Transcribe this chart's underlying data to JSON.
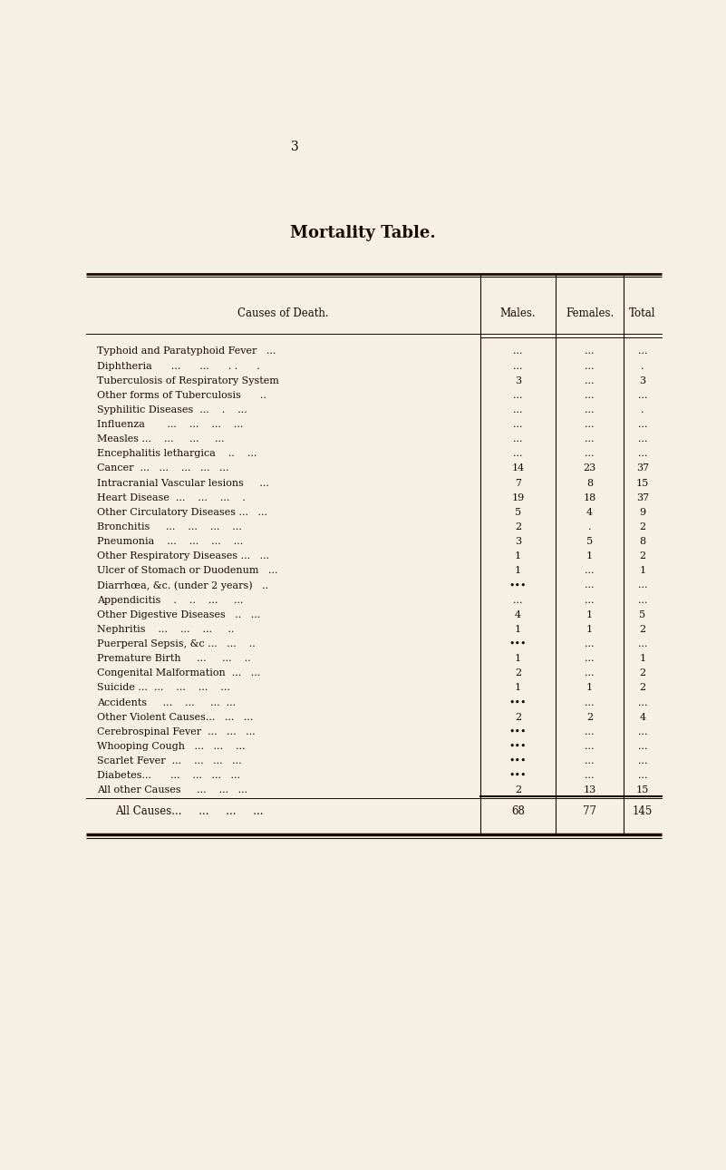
{
  "page_number": "3",
  "title": "Mortality Table.",
  "background_color": "#f5f0e1",
  "text_color": "#1a0a00",
  "header": [
    "Causes of Death.",
    "Males.",
    "Females.",
    "Total"
  ],
  "rows": [
    [
      "Typhoid and Paratyphoid Fever   ...",
      "...",
      "...",
      "..."
    ],
    [
      "Diphtheria      ...      ...      . .      .",
      "...",
      "...",
      "."
    ],
    [
      "Tuberculosis of Respiratory System",
      "3",
      "...",
      "3"
    ],
    [
      "Other forms of Tuberculosis      ..",
      "...",
      "...",
      "..."
    ],
    [
      "Syphilitic Diseases  ...    .    ...",
      "...",
      "...",
      "."
    ],
    [
      "Influenza       ...    ...    ...    ...",
      "...",
      "...",
      "..."
    ],
    [
      "Measles ...    ...     ...     ...",
      "...",
      "...",
      "..."
    ],
    [
      "Encephalitis lethargica    ..    ...",
      "...",
      "...",
      "..."
    ],
    [
      "Cancer  ...   ...    ...   ...   ...",
      "14",
      "23",
      "37"
    ],
    [
      "Intracranial Vascular lesions     ...",
      "7",
      "8",
      "15"
    ],
    [
      "Heart Disease  ...    ...    ...    .",
      "19",
      "18",
      "37"
    ],
    [
      "Other Circulatory Diseases ...   ...",
      "5",
      "4",
      "9"
    ],
    [
      "Bronchitis     ...    ...    ...    ...",
      "2",
      ".",
      "2"
    ],
    [
      "Pneumonia    ...    ...    ...    ...",
      "3",
      "5",
      "8"
    ],
    [
      "Other Respiratory Diseases ...   ...",
      "1",
      "1",
      "2"
    ],
    [
      "Ulcer of Stomach or Duodenum   ...",
      "1",
      "...",
      "1"
    ],
    [
      "Diarrhœa, &c. (under 2 years)   ..",
      "•••",
      "...",
      "..."
    ],
    [
      "Appendicitis    .    ..    ...     ...",
      "...",
      "...",
      "..."
    ],
    [
      "Other Digestive Diseases   ..   ...",
      "4",
      "1",
      "5"
    ],
    [
      "Nephritis    ...    ...    ...     ..",
      "1",
      "1",
      "2"
    ],
    [
      "Puerperal Sepsis, &c ...   ...    ..",
      "•••",
      "...",
      "..."
    ],
    [
      "Premature Birth     ...     ...    ..",
      "1",
      "...",
      "1"
    ],
    [
      "Congenital Malformation  ...   ...",
      "2",
      "...",
      "2"
    ],
    [
      "Suicide ...  ...    ...    ...    ...",
      "1",
      "1",
      "2"
    ],
    [
      "Accidents     ...    ...     ...  ...",
      "•••",
      "...",
      "..."
    ],
    [
      "Other Violent Causes...   ...   ...",
      "2",
      "2",
      "4"
    ],
    [
      "Cerebrospinal Fever  ...   ...   ...",
      "•••",
      "...",
      "..."
    ],
    [
      "Whooping Cough   ...   ...    ...",
      "•••",
      "...",
      "..."
    ],
    [
      "Scarlet Fever  ...    ...   ...   ...",
      "•••",
      "...",
      "..."
    ],
    [
      "Diabetes...      ...    ...   ...   ...",
      "•••",
      "...",
      "..."
    ],
    [
      "All other Causes     ...    ...   ...",
      "2",
      "13",
      "15"
    ]
  ],
  "footer": [
    "All Causes...     ...     ...     ...",
    "68",
    "77",
    "145"
  ],
  "title_fontsize": 13,
  "header_fontsize": 8.5,
  "row_fontsize": 8.0,
  "footer_fontsize": 8.5
}
